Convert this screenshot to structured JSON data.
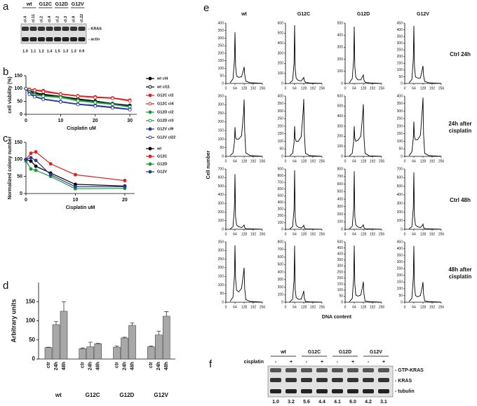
{
  "panel_labels": [
    "a",
    "b",
    "c",
    "d",
    "e",
    "f"
  ],
  "blot_a": {
    "groups": [
      "wt",
      "G12C",
      "G12D",
      "G12V"
    ],
    "lanes": [
      "cl.4",
      "cl.11",
      "cl.2",
      "cl.4",
      "cl.2",
      "cl.3",
      "cl.9",
      "cl.22"
    ],
    "bands": [
      "- KRAS",
      "- actin"
    ],
    "ratios": [
      "1.0",
      "1.1",
      "1.2",
      "1.4",
      "1.5",
      "1.3",
      "1.3",
      "0.9"
    ]
  },
  "blot_f": {
    "groups": [
      "wt",
      "G12C",
      "G12D",
      "G12V"
    ],
    "treatment": "cisplatin",
    "signs": [
      "-",
      "+",
      "-",
      "+",
      "-",
      "+",
      "-",
      "+"
    ],
    "bands": [
      "- GTP-KRAS",
      "- KRAS",
      "- tubulin"
    ],
    "ratios": [
      "1.0",
      "3.2",
      "5.6",
      "4.4",
      "4.1",
      "6.0",
      "4.2",
      "3.1"
    ]
  },
  "chart_data": [
    {
      "type": "line",
      "ylabel": "cell viability (%)",
      "xlabel": "Cisplatin uM",
      "xlim": [
        0,
        32
      ],
      "xticks": [
        0,
        10,
        20,
        30
      ],
      "ylim": [
        0,
        150
      ],
      "yticks": [
        0,
        50,
        100,
        150
      ],
      "x": [
        0,
        1,
        2.5,
        5,
        10,
        15,
        20,
        25,
        30
      ],
      "series": [
        {
          "name": "wt cl4",
          "color": "#000000",
          "open": false,
          "values": [
            100,
            92,
            85,
            78,
            70,
            60,
            52,
            42,
            35
          ]
        },
        {
          "name": "wt cl11",
          "color": "#000000",
          "open": true,
          "values": [
            100,
            90,
            82,
            75,
            68,
            58,
            50,
            40,
            32
          ]
        },
        {
          "name": "G12C cl2",
          "color": "#e02020",
          "open": false,
          "values": [
            100,
            97,
            95,
            92,
            80,
            72,
            68,
            64,
            55
          ]
        },
        {
          "name": "G12C cl4",
          "color": "#e02020",
          "open": true,
          "values": [
            100,
            95,
            93,
            88,
            78,
            70,
            65,
            62,
            52
          ]
        },
        {
          "name": "G12D cl2",
          "color": "#1a9a3a",
          "open": false,
          "values": [
            100,
            88,
            78,
            72,
            68,
            55,
            48,
            40,
            30
          ]
        },
        {
          "name": "G12D cl3",
          "color": "#1a9a3a",
          "open": true,
          "values": [
            100,
            85,
            75,
            70,
            65,
            52,
            45,
            38,
            28
          ]
        },
        {
          "name": "G12V cl9",
          "color": "#2a3a9a",
          "open": false,
          "values": [
            100,
            80,
            70,
            60,
            50,
            40,
            35,
            28,
            20
          ]
        },
        {
          "name": "G12V cl22",
          "color": "#2a3a9a",
          "open": true,
          "values": [
            100,
            78,
            68,
            58,
            48,
            38,
            32,
            25,
            18
          ]
        }
      ]
    },
    {
      "type": "line",
      "ylabel": "Normalized colony number",
      "xlabel": "Cisplatin uM",
      "xlim": [
        0,
        22
      ],
      "xticks": [
        0,
        10,
        20
      ],
      "ylim": [
        0,
        150
      ],
      "yticks": [
        0,
        50,
        100,
        150
      ],
      "x": [
        0,
        1,
        2,
        5,
        10,
        20
      ],
      "series": [
        {
          "name": "wt",
          "color": "#000000",
          "open": false,
          "values": [
            100,
            95,
            80,
            60,
            27,
            22
          ]
        },
        {
          "name": "G12C",
          "color": "#e02020",
          "open": false,
          "values": [
            100,
            118,
            122,
            87,
            55,
            38
          ]
        },
        {
          "name": "G12D",
          "color": "#1a9a3a",
          "open": false,
          "values": [
            95,
            72,
            68,
            50,
            14,
            15
          ]
        },
        {
          "name": "G12V",
          "color": "#2a3a9a",
          "open": false,
          "values": [
            100,
            105,
            97,
            55,
            20,
            20
          ]
        }
      ]
    },
    {
      "type": "bar",
      "ylabel": "Arbitrary units",
      "ylim": [
        0,
        200
      ],
      "yticks": [
        0,
        50,
        100,
        150
      ],
      "color": "#a8a8a8",
      "groups": [
        "wt",
        "G12C",
        "G12D",
        "G12V"
      ],
      "categories": [
        "ctr",
        "24h",
        "48h",
        "ctr",
        "24h",
        "48h",
        "ctr",
        "24h",
        "48h",
        "ctr",
        "24h",
        "48h"
      ],
      "values": [
        30,
        90,
        125,
        27,
        32,
        40,
        31,
        55,
        88,
        32,
        63,
        112
      ],
      "errors": [
        1,
        8,
        25,
        2,
        12,
        1,
        3,
        2,
        6,
        2,
        10,
        12
      ]
    },
    {
      "type": "flow",
      "ylabel": "Cell number",
      "xlabel": "DNA content",
      "columns": [
        "wt",
        "G12C",
        "G12D",
        "G12V"
      ],
      "rows": [
        [
          "Ctrl 24h"
        ],
        [
          "24h after",
          "cisplatin"
        ],
        [
          "Ctrl 48h"
        ],
        [
          "48h after",
          "cisplatin"
        ]
      ],
      "xlim": [
        0,
        256
      ],
      "xticks": [
        0,
        64,
        128,
        192,
        256
      ],
      "x": [
        30,
        50,
        60,
        64,
        68,
        75,
        90,
        110,
        124,
        128,
        132,
        140,
        170,
        256
      ],
      "panels": [
        [
          {
            "ylim": [
              0,
              400
            ],
            "yticks": [
              0,
              50,
              100,
              150,
              200,
              250,
              300,
              350,
              400
            ],
            "values": [
              5,
              30,
              150,
              340,
              120,
              50,
              40,
              45,
              90,
              110,
              60,
              15,
              5,
              0
            ]
          },
          {
            "ylim": [
              0,
              600
            ],
            "yticks": [
              0,
              100,
              200,
              300,
              400,
              500,
              600
            ],
            "values": [
              5,
              30,
              200,
              580,
              150,
              50,
              30,
              25,
              50,
              60,
              30,
              10,
              5,
              0
            ]
          },
          {
            "ylim": [
              0,
              500
            ],
            "yticks": [
              0,
              100,
              200,
              300,
              400,
              500
            ],
            "values": [
              5,
              40,
              200,
              470,
              140,
              50,
              30,
              30,
              60,
              70,
              30,
              10,
              5,
              0
            ]
          },
          {
            "ylim": [
              0,
              450
            ],
            "yticks": [
              0,
              50,
              100,
              150,
              200,
              250,
              300,
              350,
              400,
              450
            ],
            "values": [
              5,
              30,
              180,
              430,
              130,
              50,
              40,
              40,
              110,
              130,
              60,
              15,
              5,
              0
            ]
          }
        ],
        [
          {
            "ylim": [
              0,
              350
            ],
            "yticks": [
              0,
              50,
              100,
              150,
              200,
              250,
              300,
              350
            ],
            "values": [
              5,
              20,
              80,
              170,
              110,
              100,
              100,
              120,
              250,
              330,
              150,
              20,
              5,
              0
            ]
          },
          {
            "ylim": [
              0,
              400
            ],
            "yticks": [
              0,
              50,
              100,
              150,
              200,
              250,
              300,
              350,
              400
            ],
            "values": [
              5,
              20,
              90,
              200,
              120,
              100,
              100,
              130,
              300,
              380,
              160,
              20,
              5,
              0
            ]
          },
          {
            "ylim": [
              0,
              600
            ],
            "yticks": [
              0,
              100,
              200,
              300,
              400,
              500,
              600
            ],
            "values": [
              5,
              30,
              150,
              300,
              180,
              150,
              160,
              200,
              430,
              520,
              200,
              30,
              5,
              0
            ]
          },
          {
            "ylim": [
              0,
              400
            ],
            "yticks": [
              0,
              50,
              100,
              150,
              200,
              250,
              300,
              350,
              400
            ],
            "values": [
              5,
              30,
              120,
              230,
              130,
              110,
              110,
              140,
              320,
              390,
              150,
              20,
              5,
              0
            ]
          }
        ],
        [
          {
            "ylim": [
              0,
              700
            ],
            "yticks": [
              0,
              100,
              200,
              300,
              400,
              500,
              600,
              700
            ],
            "values": [
              5,
              30,
              250,
              640,
              150,
              50,
              30,
              20,
              40,
              50,
              20,
              5,
              5,
              0
            ]
          },
          {
            "ylim": [
              0,
              900
            ],
            "yticks": [
              0,
              100,
              200,
              300,
              400,
              500,
              600,
              700,
              800,
              900
            ],
            "values": [
              5,
              40,
              300,
              880,
              180,
              60,
              30,
              20,
              45,
              60,
              25,
              5,
              5,
              0
            ]
          },
          {
            "ylim": [
              0,
              800
            ],
            "yticks": [
              0,
              100,
              200,
              300,
              400,
              500,
              600,
              700,
              800
            ],
            "values": [
              5,
              40,
              280,
              770,
              170,
              60,
              30,
              20,
              45,
              60,
              25,
              5,
              5,
              0
            ]
          },
          {
            "ylim": [
              0,
              700
            ],
            "yticks": [
              0,
              100,
              200,
              300,
              400,
              500,
              600,
              700
            ],
            "values": [
              5,
              30,
              250,
              660,
              150,
              50,
              30,
              20,
              45,
              60,
              25,
              5,
              5,
              0
            ]
          }
        ],
        [
          {
            "ylim": [
              0,
              350
            ],
            "yticks": [
              0,
              50,
              100,
              150,
              200,
              250,
              300,
              350
            ],
            "values": [
              5,
              30,
              150,
              330,
              140,
              70,
              60,
              80,
              170,
              200,
              80,
              15,
              5,
              0
            ]
          },
          {
            "ylim": [
              0,
              800
            ],
            "yticks": [
              0,
              100,
              200,
              300,
              400,
              500,
              600,
              700,
              800
            ],
            "values": [
              5,
              40,
              300,
              750,
              170,
              60,
              40,
              40,
              120,
              150,
              60,
              10,
              5,
              0
            ]
          },
          {
            "ylim": [
              0,
              500
            ],
            "yticks": [
              0,
              50,
              100,
              150,
              200,
              250,
              300,
              350,
              400,
              450,
              500
            ],
            "values": [
              5,
              30,
              200,
              470,
              150,
              60,
              50,
              60,
              140,
              170,
              70,
              10,
              5,
              0
            ]
          },
          {
            "ylim": [
              0,
              450
            ],
            "yticks": [
              0,
              50,
              100,
              150,
              200,
              250,
              300,
              350,
              400,
              450
            ],
            "values": [
              5,
              30,
              180,
              420,
              130,
              50,
              40,
              50,
              120,
              150,
              60,
              10,
              5,
              0
            ]
          }
        ]
      ]
    }
  ]
}
